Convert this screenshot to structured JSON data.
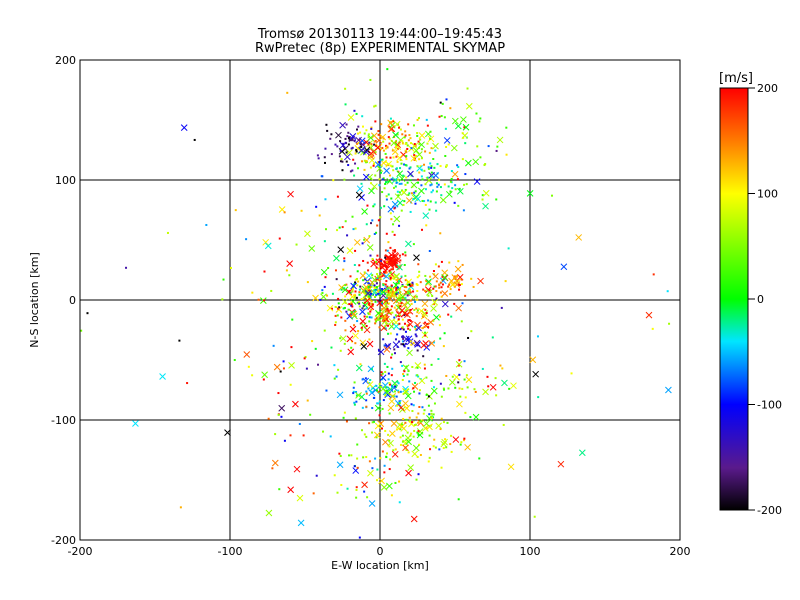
{
  "chart_data": {
    "type": "scatter",
    "title": "Tromsø 20130113 19:44:00–19:45:43",
    "subtitle": "RwPretec (8p) EXPERIMENTAL SKYMAP",
    "xlabel": "E-W location [km]",
    "ylabel": "N-S location [km]",
    "xlim": [
      -200,
      200
    ],
    "ylim": [
      -200,
      200
    ],
    "xticks": [
      -200,
      -100,
      0,
      100,
      200
    ],
    "yticks": [
      -200,
      -100,
      0,
      100,
      200
    ],
    "grid": true,
    "colorbar": {
      "label": "[m/s]",
      "range": [
        -200,
        200
      ],
      "ticks": [
        200,
        100,
        0,
        -100,
        -200
      ],
      "colormap": "black-purple-blue-cyan-green-yellow-red"
    },
    "markers": {
      "small": "dot",
      "large": "x"
    },
    "clusters": [
      {
        "cx": 10,
        "cy": 130,
        "sx": 14,
        "sy": 12,
        "n": 160,
        "vmean": 120,
        "vsd": 60
      },
      {
        "cx": -22,
        "cy": 130,
        "sx": 8,
        "sy": 7,
        "n": 60,
        "vmean": -170,
        "vsd": 30
      },
      {
        "cx": 25,
        "cy": 100,
        "sx": 22,
        "sy": 12,
        "n": 150,
        "vmean": 0,
        "vsd": 50
      },
      {
        "cx": 55,
        "cy": 135,
        "sx": 15,
        "sy": 15,
        "n": 40,
        "vmean": 40,
        "vsd": 80
      },
      {
        "cx": 5,
        "cy": 30,
        "sx": 5,
        "sy": 5,
        "n": 90,
        "vmean": 195,
        "vsd": 8
      },
      {
        "cx": 0,
        "cy": 5,
        "sx": 15,
        "sy": 10,
        "n": 300,
        "vmean": 60,
        "vsd": 110
      },
      {
        "cx": 45,
        "cy": 15,
        "sx": 14,
        "sy": 6,
        "n": 60,
        "vmean": 160,
        "vsd": 40
      },
      {
        "cx": 5,
        "cy": -15,
        "sx": 17,
        "sy": 8,
        "n": 130,
        "vmean": 150,
        "vsd": 90
      },
      {
        "cx": 15,
        "cy": -35,
        "sx": 8,
        "sy": 6,
        "n": 40,
        "vmean": -120,
        "vsd": 30
      },
      {
        "cx": 0,
        "cy": -75,
        "sx": 12,
        "sy": 8,
        "n": 80,
        "vmean": -50,
        "vsd": 25
      },
      {
        "cx": 30,
        "cy": -70,
        "sx": 25,
        "sy": 10,
        "n": 70,
        "vmean": 60,
        "vsd": 60
      },
      {
        "cx": 25,
        "cy": -110,
        "sx": 15,
        "sy": 12,
        "n": 110,
        "vmean": 80,
        "vsd": 30
      },
      {
        "cx": 0,
        "cy": -140,
        "sx": 10,
        "sy": 15,
        "n": 40,
        "vmean": 100,
        "vsd": 80
      },
      {
        "cx": 0,
        "cy": 60,
        "sx": 25,
        "sy": 45,
        "n": 160,
        "vmean": 20,
        "vsd": 120
      },
      {
        "cx": 0,
        "cy": -60,
        "sx": 45,
        "sy": 60,
        "n": 180,
        "vmean": 80,
        "vsd": 120
      },
      {
        "cx": 0,
        "cy": 0,
        "sx": 110,
        "sy": 120,
        "n": 110,
        "vmean": 0,
        "vsd": 140
      }
    ]
  }
}
